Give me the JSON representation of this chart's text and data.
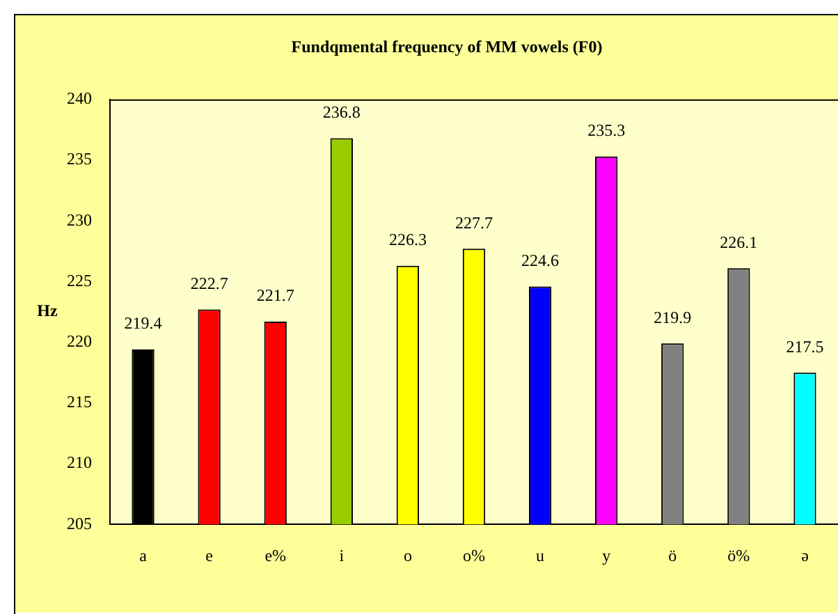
{
  "chart_data": {
    "type": "bar",
    "title": "Fundqmental frequency of MM vowels (F0)",
    "ylabel": "Hz",
    "categories": [
      "a",
      "e",
      "e%",
      "i",
      "o",
      "o%",
      "u",
      "y",
      "ö",
      "ö%",
      "ə"
    ],
    "values": [
      219.4,
      222.7,
      221.7,
      236.8,
      226.3,
      227.7,
      224.6,
      235.3,
      219.9,
      226.1,
      217.5
    ],
    "colors": [
      "#000000",
      "#ff0000",
      "#ff0000",
      "#99cc00",
      "#ffff00",
      "#ffff00",
      "#0000ff",
      "#ff00ff",
      "#808080",
      "#808080",
      "#00ffff"
    ],
    "ylim": [
      205,
      240
    ],
    "yticks": [
      205,
      210,
      215,
      220,
      225,
      230,
      235,
      240
    ],
    "data_labels": true,
    "grid": false,
    "legend": false
  }
}
